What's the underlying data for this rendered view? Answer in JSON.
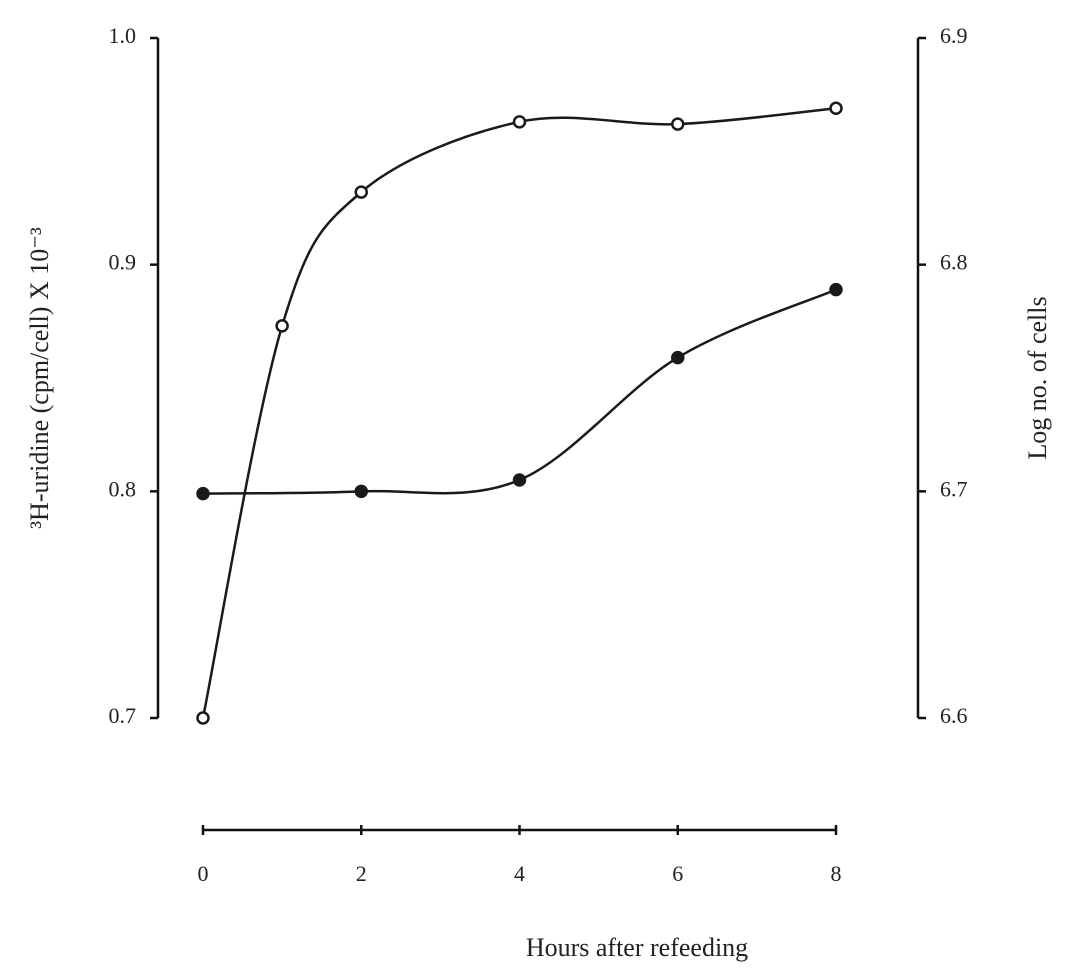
{
  "chart_data": {
    "type": "line",
    "x_label": "Hours after refeeding",
    "y_label": "³H-uridine (cpm/cell) X 10⁻³",
    "y2_label": "Log no. of cells",
    "xlim": [
      0,
      8
    ],
    "xticks": [
      0,
      2,
      4,
      6,
      8
    ],
    "ylim": [
      0.7,
      1.0
    ],
    "yticks": [
      0.7,
      0.8,
      0.9,
      {
        "value": 1,
        "label": "1.0"
      }
    ],
    "y2lim": [
      6.6,
      6.9
    ],
    "y2ticks": [
      6.6,
      6.7,
      6.8,
      6.9
    ],
    "series": [
      {
        "x": [
          0,
          1,
          2,
          4,
          6,
          8
        ],
        "values": [
          0.7,
          0.873,
          0.932,
          0.963,
          0.962,
          0.969
        ],
        "color": "#1a1a1a",
        "marker": "open"
      },
      {
        "x": [
          0,
          2,
          4,
          6,
          8
        ],
        "values": [
          6.699,
          6.7,
          6.705,
          6.759,
          6.789
        ],
        "color": "#1a1a1a",
        "marker": "filled",
        "axis": "y2"
      }
    ]
  }
}
